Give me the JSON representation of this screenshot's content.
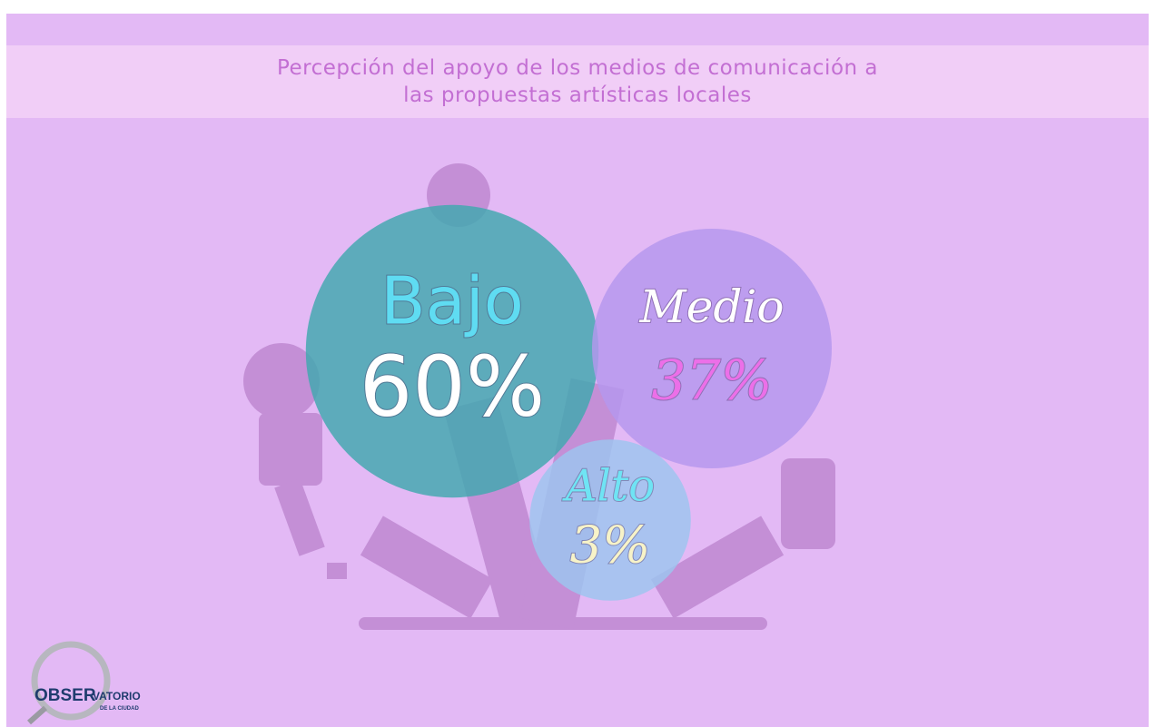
{
  "chart_data": {
    "type": "bubble",
    "title": "Percepción del apoyo de los medios de comunicación a las propuestas artísticas locales",
    "categories": [
      "Bajo",
      "Medio",
      "Alto"
    ],
    "values": [
      60,
      37,
      3
    ],
    "value_labels": [
      "60%",
      "37%",
      "3%"
    ],
    "colors": [
      "#3fa8ae",
      "#b497ee",
      "#9cc6ef"
    ]
  },
  "logo": {
    "main": "OBSER",
    "rest": "VATORIO",
    "sub": "DE LA CIUDAD"
  }
}
